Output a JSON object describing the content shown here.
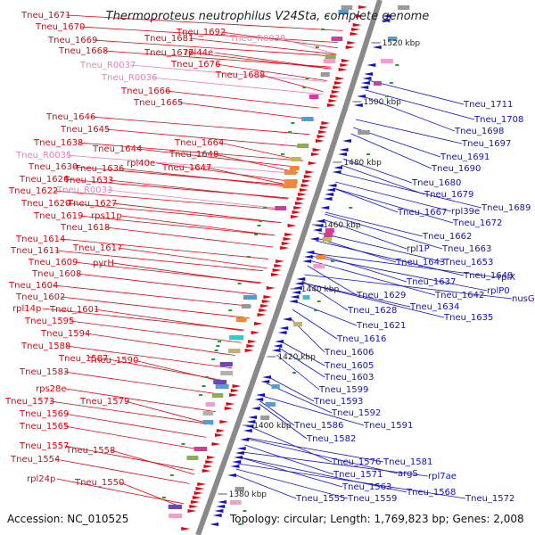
{
  "title": "Thermoproteus neutrophilus V24Sta, complete genome",
  "accession": "Accession: NC_010525",
  "stats": "Topology: circular; Length: 1,769,823 bp; Genes: 2,008",
  "colors": {
    "left_label": "#e8000b",
    "left_rna": "#e87fc0",
    "right_label": "#1010cc",
    "backbone": "#8a8a8a"
  },
  "scale_marks": [
    {
      "label": "1520 kbp"
    },
    {
      "label": "1500 kbp"
    },
    {
      "label": "1480 kbp"
    },
    {
      "label": "1460 kbp"
    },
    {
      "label": "1440 kbp"
    },
    {
      "label": "1420 kbp"
    },
    {
      "label": "1400 kbp"
    },
    {
      "label": "1380 kbp"
    }
  ],
  "left_labels": [
    {
      "text": "Tneu_1671"
    },
    {
      "text": "Tneu_1670"
    },
    {
      "text": "Tneu_1669"
    },
    {
      "text": "Tneu_1668"
    },
    {
      "text": "Tneu_R0037"
    },
    {
      "text": "Tneu_R0036"
    },
    {
      "text": "Tneu_1666"
    },
    {
      "text": "Tneu_1665"
    },
    {
      "text": "Tneu_1681"
    },
    {
      "text": "Tneu_1677"
    },
    {
      "text": "rpl44e"
    },
    {
      "text": "Tneu_1676"
    },
    {
      "text": "Tneu_1692"
    },
    {
      "text": "Tneu_R0038"
    },
    {
      "text": "Tneu_1688"
    },
    {
      "text": "Tneu_1646"
    },
    {
      "text": "Tneu_1645"
    },
    {
      "text": "Tneu_1638"
    },
    {
      "text": "Tneu_1644"
    },
    {
      "text": "Tneu_R0035"
    },
    {
      "text": "rpl40e"
    },
    {
      "text": "Tneu_1630"
    },
    {
      "text": "Tneu_1636"
    },
    {
      "text": "Tneu_1626"
    },
    {
      "text": "Tneu_1633"
    },
    {
      "text": "Tneu_1622"
    },
    {
      "text": "Tneu_R0033"
    },
    {
      "text": "Tneu_1664"
    },
    {
      "text": "Tneu_1648"
    },
    {
      "text": "Tneu_1647"
    },
    {
      "text": "Tneu_1620"
    },
    {
      "text": "Tneu_1627"
    },
    {
      "text": "Tneu_1619"
    },
    {
      "text": "rps11p"
    },
    {
      "text": "Tneu_1618"
    },
    {
      "text": "Tneu_1614"
    },
    {
      "text": "Tneu_1611"
    },
    {
      "text": "Tneu_1617"
    },
    {
      "text": "Tneu_1609"
    },
    {
      "text": "pyrH"
    },
    {
      "text": "Tneu_1608"
    },
    {
      "text": "Tneu_1604"
    },
    {
      "text": "Tneu_1602"
    },
    {
      "text": "rpl14p"
    },
    {
      "text": "Tneu_1601"
    },
    {
      "text": "Tneu_1595"
    },
    {
      "text": "Tneu_1594"
    },
    {
      "text": "Tneu_1588"
    },
    {
      "text": "Tneu_1587"
    },
    {
      "text": "Tneu_1590"
    },
    {
      "text": "Tneu_1583"
    },
    {
      "text": "rps28e"
    },
    {
      "text": "Tneu_1573"
    },
    {
      "text": "Tneu_1579"
    },
    {
      "text": "Tneu_1569"
    },
    {
      "text": "Tneu_1565"
    },
    {
      "text": "Tneu_1557"
    },
    {
      "text": "Tneu_1558"
    },
    {
      "text": "Tneu_1554"
    },
    {
      "text": "rpl24p"
    },
    {
      "text": "Tneu_1550"
    }
  ],
  "right_labels": [
    {
      "text": "Tneu_1711"
    },
    {
      "text": "Tneu_1708"
    },
    {
      "text": "Tneu_1698"
    },
    {
      "text": "Tneu_1697"
    },
    {
      "text": "Tneu_1691"
    },
    {
      "text": "Tneu_1690"
    },
    {
      "text": "Tneu_1680"
    },
    {
      "text": "Tneu_1679"
    },
    {
      "text": "Tneu_1689"
    },
    {
      "text": "Tneu_1667"
    },
    {
      "text": "rpl39e"
    },
    {
      "text": "Tneu_1672"
    },
    {
      "text": "Tneu_1662"
    },
    {
      "text": "rpl1P"
    },
    {
      "text": "Tneu_1663"
    },
    {
      "text": "Tneu_1643"
    },
    {
      "text": "Tneu_1653"
    },
    {
      "text": "Tneu_1649"
    },
    {
      "text": "rplX"
    },
    {
      "text": "Tneu_1637"
    },
    {
      "text": "rplP0"
    },
    {
      "text": "nusG"
    },
    {
      "text": "Tneu_1629"
    },
    {
      "text": "Tneu_1642"
    },
    {
      "text": "Tneu_1634"
    },
    {
      "text": "Tneu_1628"
    },
    {
      "text": "Tneu_1635"
    },
    {
      "text": "Tneu_1621"
    },
    {
      "text": "Tneu_1616"
    },
    {
      "text": "Tneu_1606"
    },
    {
      "text": "Tneu_1605"
    },
    {
      "text": "Tneu_1603"
    },
    {
      "text": "Tneu_1599"
    },
    {
      "text": "Tneu_1593"
    },
    {
      "text": "Tneu_1592"
    },
    {
      "text": "Tneu_1582"
    },
    {
      "text": "Tneu_1586"
    },
    {
      "text": "Tneu_1591"
    },
    {
      "text": "Tneu_1576"
    },
    {
      "text": "Tneu_1581"
    },
    {
      "text": "Tneu_1571"
    },
    {
      "text": "argS"
    },
    {
      "text": "rpl7ae"
    },
    {
      "text": "Tneu_1563"
    },
    {
      "text": "Tneu_1568"
    },
    {
      "text": "Tneu_1555"
    },
    {
      "text": "Tneu_1559"
    },
    {
      "text": "Tneu_1572"
    }
  ]
}
